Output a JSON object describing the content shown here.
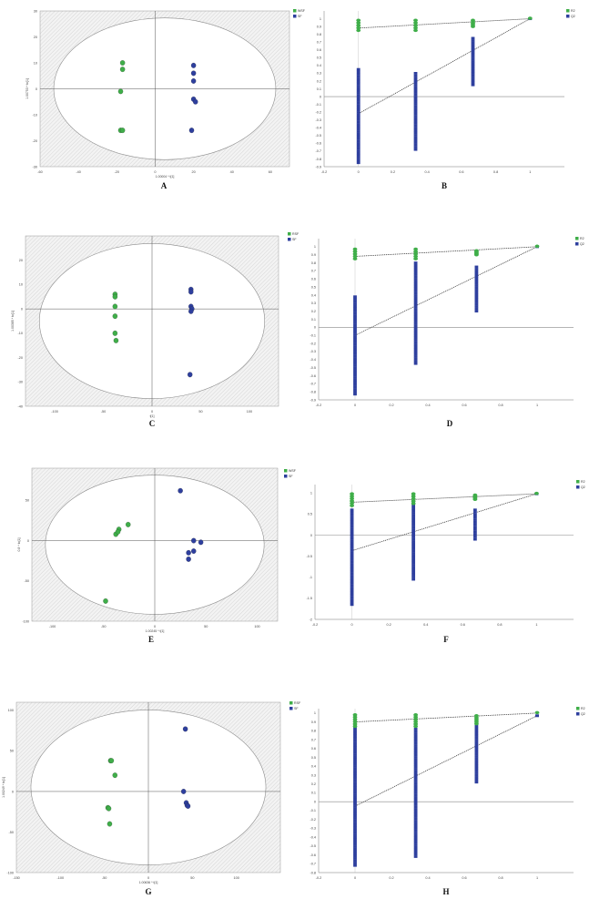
{
  "colors": {
    "green": "#3fae49",
    "blue": "#2e3f9e",
    "hatch": "#d7d7d7"
  },
  "chart_data": [
    {
      "label": "A",
      "type": "scatter",
      "xlabel": "1.00004 * t[1]",
      "ylabel": "1.00753 * to[1]",
      "xlim": [
        -60,
        70
      ],
      "ylim": [
        -30,
        30
      ],
      "xticks": [
        "-60",
        "-40",
        "-20",
        "0",
        "20",
        "40",
        "60"
      ],
      "yticks": [
        "30",
        "20",
        "10",
        "0",
        "-10",
        "-20",
        "-30"
      ],
      "legend": [
        "WSF",
        "SF"
      ],
      "series": [
        {
          "name": "WSF",
          "color": "green",
          "points": [
            [
              -17,
              10
            ],
            [
              -17,
              7.5
            ],
            [
              -18,
              -1
            ],
            [
              -18,
              -16
            ],
            [
              -17,
              -16
            ]
          ]
        },
        {
          "name": "SF",
          "color": "blue",
          "points": [
            [
              20,
              9
            ],
            [
              20,
              6
            ],
            [
              20,
              3
            ],
            [
              20,
              -4
            ],
            [
              21,
              -5
            ],
            [
              19,
              -16
            ]
          ]
        }
      ]
    },
    {
      "label": "B",
      "type": "validation",
      "xlim": [
        -0.2,
        1.2
      ],
      "ylim": [
        -0.9,
        1.1
      ],
      "xticks": [
        "-0.2",
        "0",
        "0.2",
        "0.4",
        "0.6",
        "0.8",
        "1"
      ],
      "yticks": [
        "1",
        "0.9",
        "0.8",
        "0.7",
        "0.6",
        "0.5",
        "0.4",
        "0.3",
        "0.2",
        "0.1",
        "0",
        "-0.1",
        "-0.2",
        "-0.3",
        "-0.4",
        "-0.5",
        "-0.6",
        "-0.7",
        "-0.8",
        "-0.9"
      ],
      "legend": [
        "R2",
        "Q2"
      ],
      "r2": {
        "x": [
          0,
          0.333,
          0.667
        ],
        "min": [
          0.85,
          0.85,
          0.9
        ],
        "max": [
          0.98,
          0.98,
          0.98
        ]
      },
      "q2": {
        "x": [
          0,
          0.333,
          0.667
        ],
        "min": [
          -0.85,
          -0.68,
          0.15
        ],
        "max": [
          0.35,
          0.3,
          0.75
        ]
      },
      "r2_line": [
        [
          0,
          0.88
        ],
        [
          1,
          1.0
        ]
      ],
      "q2_line": [
        [
          0,
          -0.22
        ],
        [
          1,
          1.0
        ]
      ]
    },
    {
      "label": "C",
      "type": "scatter",
      "xlabel": "t[1]",
      "ylabel": "1.00385 * to[1]",
      "xlim": [
        -130,
        130
      ],
      "ylim": [
        -40,
        30
      ],
      "xticks": [
        "-100",
        "-50",
        "0",
        "50",
        "100"
      ],
      "yticks": [
        "20",
        "10",
        "0",
        "-10",
        "-20",
        "-30",
        "-40"
      ],
      "legend": [
        "RSF",
        "SF"
      ],
      "series": [
        {
          "name": "RSF",
          "color": "green",
          "points": [
            [
              -38,
              6
            ],
            [
              -38,
              5
            ],
            [
              -38,
              1
            ],
            [
              -38,
              -3
            ],
            [
              -38,
              -10
            ],
            [
              -37,
              -13
            ]
          ]
        },
        {
          "name": "SF",
          "color": "blue",
          "points": [
            [
              40,
              8
            ],
            [
              40,
              7
            ],
            [
              40,
              1
            ],
            [
              41,
              0
            ],
            [
              40,
              -1
            ],
            [
              39,
              -27
            ]
          ]
        }
      ]
    },
    {
      "label": "D",
      "type": "validation",
      "xlim": [
        -0.2,
        1.2
      ],
      "ylim": [
        -0.9,
        1.1
      ],
      "xticks": [
        "-0.2",
        "0",
        "0.2",
        "0.4",
        "0.6",
        "0.8",
        "1"
      ],
      "yticks": [
        "1",
        "0.9",
        "0.8",
        "0.7",
        "0.6",
        "0.5",
        "0.4",
        "0.3",
        "0.2",
        "0.1",
        "0",
        "-0.1",
        "-0.2",
        "-0.3",
        "-0.4",
        "-0.5",
        "-0.6",
        "-0.7",
        "-0.8",
        "-0.9"
      ],
      "legend": [
        "R2",
        "Q2"
      ],
      "r2": {
        "x": [
          0,
          0.333,
          0.667
        ],
        "min": [
          0.85,
          0.85,
          0.9
        ],
        "max": [
          0.97,
          0.97,
          0.95
        ]
      },
      "q2": {
        "x": [
          0,
          0.333,
          0.667
        ],
        "min": [
          -0.83,
          -0.45,
          0.2
        ],
        "max": [
          0.38,
          0.8,
          0.75
        ]
      },
      "r2_line": [
        [
          0,
          0.88
        ],
        [
          1,
          1.0
        ]
      ],
      "q2_line": [
        [
          0,
          -0.1
        ],
        [
          1,
          1.0
        ]
      ]
    },
    {
      "label": "E",
      "type": "scatter",
      "xlabel": "1.00245 * t[1]",
      "ylabel": "0.8 * to[1]",
      "xlim": [
        -120,
        120
      ],
      "ylim": [
        -100,
        90
      ],
      "xticks": [
        "-100",
        "-50",
        "0",
        "50",
        "100"
      ],
      "yticks": [
        "50",
        "0",
        "-50",
        "-100"
      ],
      "legend": [
        "WSF",
        "SF"
      ],
      "series": [
        {
          "name": "WSF",
          "color": "green",
          "points": [
            [
              -26,
              20
            ],
            [
              -35,
              14
            ],
            [
              -38,
              8
            ],
            [
              -36,
              11
            ],
            [
              -48,
              -75
            ]
          ]
        },
        {
          "name": "SF",
          "color": "blue",
          "points": [
            [
              25,
              62
            ],
            [
              38,
              0
            ],
            [
              45,
              -2
            ],
            [
              38,
              -13
            ],
            [
              33,
              -15
            ],
            [
              33,
              -23
            ]
          ]
        }
      ]
    },
    {
      "label": "F",
      "type": "validation",
      "xlim": [
        -0.2,
        1.2
      ],
      "ylim": [
        -2,
        1.2
      ],
      "xticks": [
        "-0.2",
        "0",
        "0.2",
        "0.4",
        "0.6",
        "0.8",
        "1"
      ],
      "yticks": [
        "1",
        "0.5",
        "0",
        "-0.5",
        "-1",
        "-1.5",
        "-2"
      ],
      "legend": [
        "R2",
        "Q2"
      ],
      "r2": {
        "x": [
          0,
          0.333,
          0.667
        ],
        "min": [
          0.7,
          0.75,
          0.85
        ],
        "max": [
          0.98,
          0.98,
          0.95
        ]
      },
      "q2": {
        "x": [
          0,
          0.333,
          0.667
        ],
        "min": [
          -1.65,
          -1.05,
          -0.1
        ],
        "max": [
          0.6,
          0.8,
          0.6
        ]
      },
      "r2_line": [
        [
          0,
          0.78
        ],
        [
          1,
          0.98
        ]
      ],
      "q2_line": [
        [
          0,
          -0.37
        ],
        [
          1,
          0.98
        ]
      ]
    },
    {
      "label": "G",
      "type": "scatter",
      "xlabel": "1.00636 * t[1]",
      "ylabel": "1.00249 * to[1]",
      "xlim": [
        -150,
        150
      ],
      "ylim": [
        -100,
        110
      ],
      "xticks": [
        "-150",
        "-100",
        "-50",
        "0",
        "50",
        "100"
      ],
      "yticks": [
        "100",
        "50",
        "0",
        "-50",
        "-100"
      ],
      "legend": [
        "RSF",
        "SF"
      ],
      "series": [
        {
          "name": "RSF",
          "color": "green",
          "points": [
            [
              -43,
              38
            ],
            [
              -42,
              38
            ],
            [
              -38,
              20
            ],
            [
              -46,
              -20
            ],
            [
              -45,
              -21
            ],
            [
              -44,
              -40
            ]
          ]
        },
        {
          "name": "SF",
          "color": "blue",
          "points": [
            [
              42,
              77
            ],
            [
              40,
              0
            ],
            [
              43,
              -14
            ],
            [
              44,
              -17
            ],
            [
              45,
              -18
            ]
          ]
        }
      ]
    },
    {
      "label": "H",
      "type": "validation",
      "xlim": [
        -0.2,
        1.2
      ],
      "ylim": [
        -0.8,
        1.05
      ],
      "xticks": [
        "-0.2",
        "0",
        "0.2",
        "0.4",
        "0.6",
        "0.8",
        "1"
      ],
      "yticks": [
        "1",
        "0.9",
        "0.8",
        "0.7",
        "0.6",
        "0.5",
        "0.4",
        "0.3",
        "0.2",
        "0.1",
        "0",
        "-0.1",
        "-0.2",
        "-0.3",
        "-0.4",
        "-0.5",
        "-0.6",
        "-0.7",
        "-0.8"
      ],
      "legend": [
        "R2",
        "Q2"
      ],
      "r2": {
        "x": [
          0,
          0.333,
          0.667
        ],
        "min": [
          0.85,
          0.85,
          0.88
        ],
        "max": [
          0.98,
          0.98,
          0.97
        ]
      },
      "q2": {
        "x": [
          0,
          0.333,
          0.667
        ],
        "min": [
          -0.72,
          -0.62,
          0.22
        ],
        "max": [
          0.85,
          0.82,
          0.88
        ]
      },
      "r2_line": [
        [
          0,
          0.9
        ],
        [
          1,
          1.0
        ]
      ],
      "q2_line": [
        [
          0,
          -0.05
        ],
        [
          1,
          0.97
        ]
      ]
    }
  ]
}
